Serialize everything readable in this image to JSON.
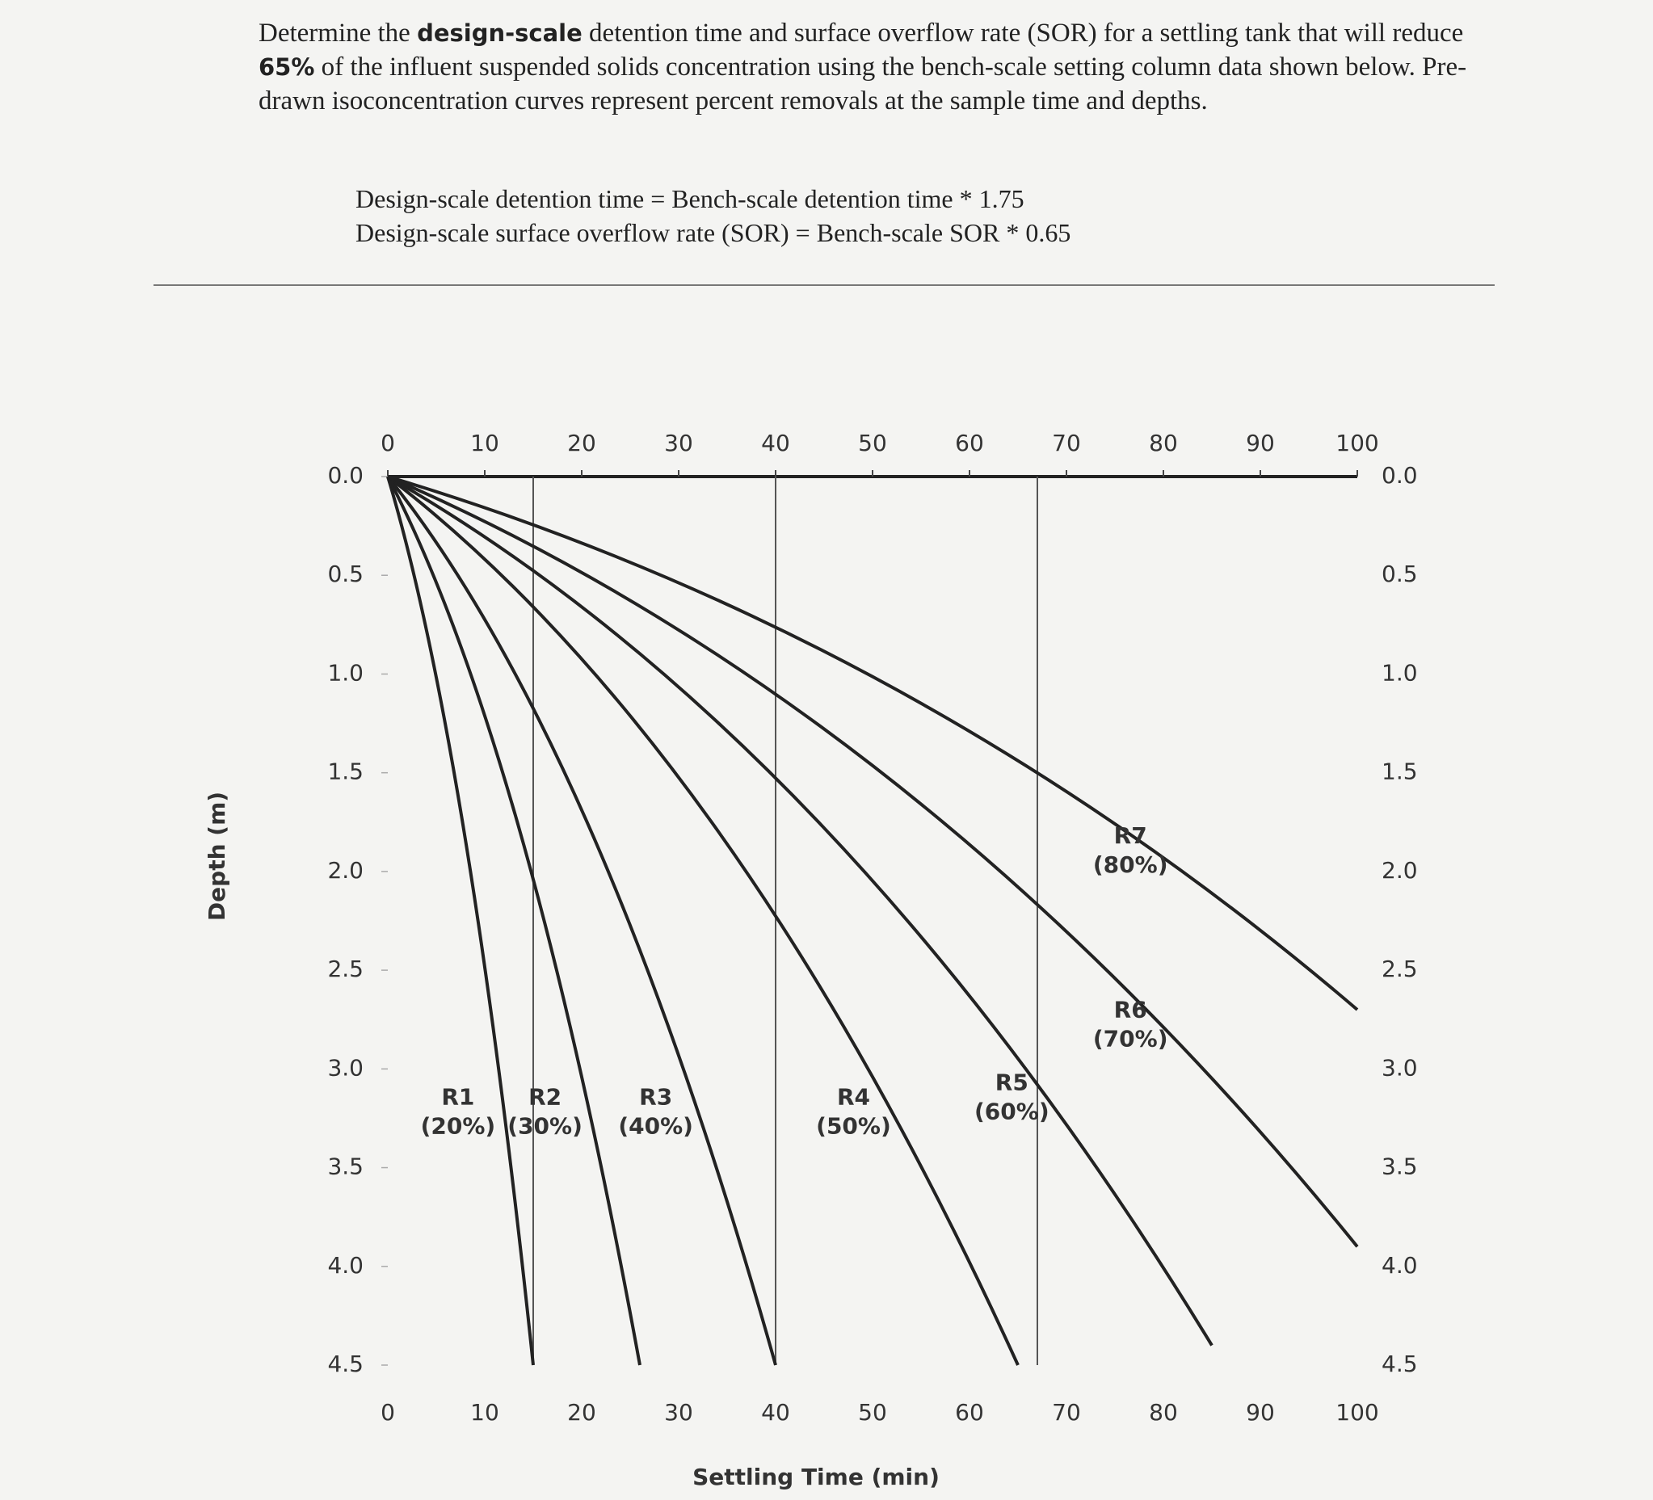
{
  "problem": {
    "parts": [
      "Determine the ",
      "design-scale",
      " detention time and surface overflow rate (SOR) for a settling tank that will reduce ",
      "65%",
      " of the influent suspended solids concentration using the bench-scale setting column data shown below. Pre-drawn isoconcentration curves represent percent removals at the sample time and depths."
    ]
  },
  "formulas": [
    "Design-scale detention time = Bench-scale detention time * 1.75",
    "Design-scale surface overflow rate (SOR) = Bench-scale SOR * 0.65"
  ],
  "chart_data": {
    "type": "isoconcentration",
    "x_label": "Settling Time (min)",
    "y_label": "Depth (m)",
    "xlim": [
      0,
      100
    ],
    "ylim": [
      0,
      4.5
    ],
    "xticks": [
      0,
      10,
      20,
      30,
      40,
      50,
      60,
      70,
      80,
      90,
      100
    ],
    "yticks": [
      {
        "value": 0,
        "label": "0.0"
      },
      0.5,
      {
        "value": 1,
        "label": "1.0"
      },
      1.5,
      {
        "value": 2,
        "label": "2.0"
      },
      2.5,
      {
        "value": 3,
        "label": "3.0"
      },
      3.5,
      {
        "value": 4,
        "label": "4.0"
      },
      4.5
    ],
    "guides": [
      15,
      40,
      67
    ],
    "curves": [
      {
        "name": "R1",
        "label": "(20%)",
        "end_time": 15,
        "end_depth": 4.5
      },
      {
        "name": "R2",
        "label": "(30%)",
        "end_time": 26,
        "end_depth": 4.5
      },
      {
        "name": "R3",
        "label": "(40%)",
        "end_time": 40,
        "end_depth": 4.5
      },
      {
        "name": "R4",
        "label": "(50%)",
        "end_time": 65,
        "end_depth": 4.5
      },
      {
        "name": "R5",
        "label": "(60%)",
        "end_time": 85,
        "end_depth": 4.4
      },
      {
        "name": "R6",
        "label": "(70%)",
        "end_time": 100,
        "end_depth": 3.9
      },
      {
        "name": "R7",
        "label": "(80%)",
        "end_time": 100,
        "end_depth": 2.7
      }
    ]
  }
}
